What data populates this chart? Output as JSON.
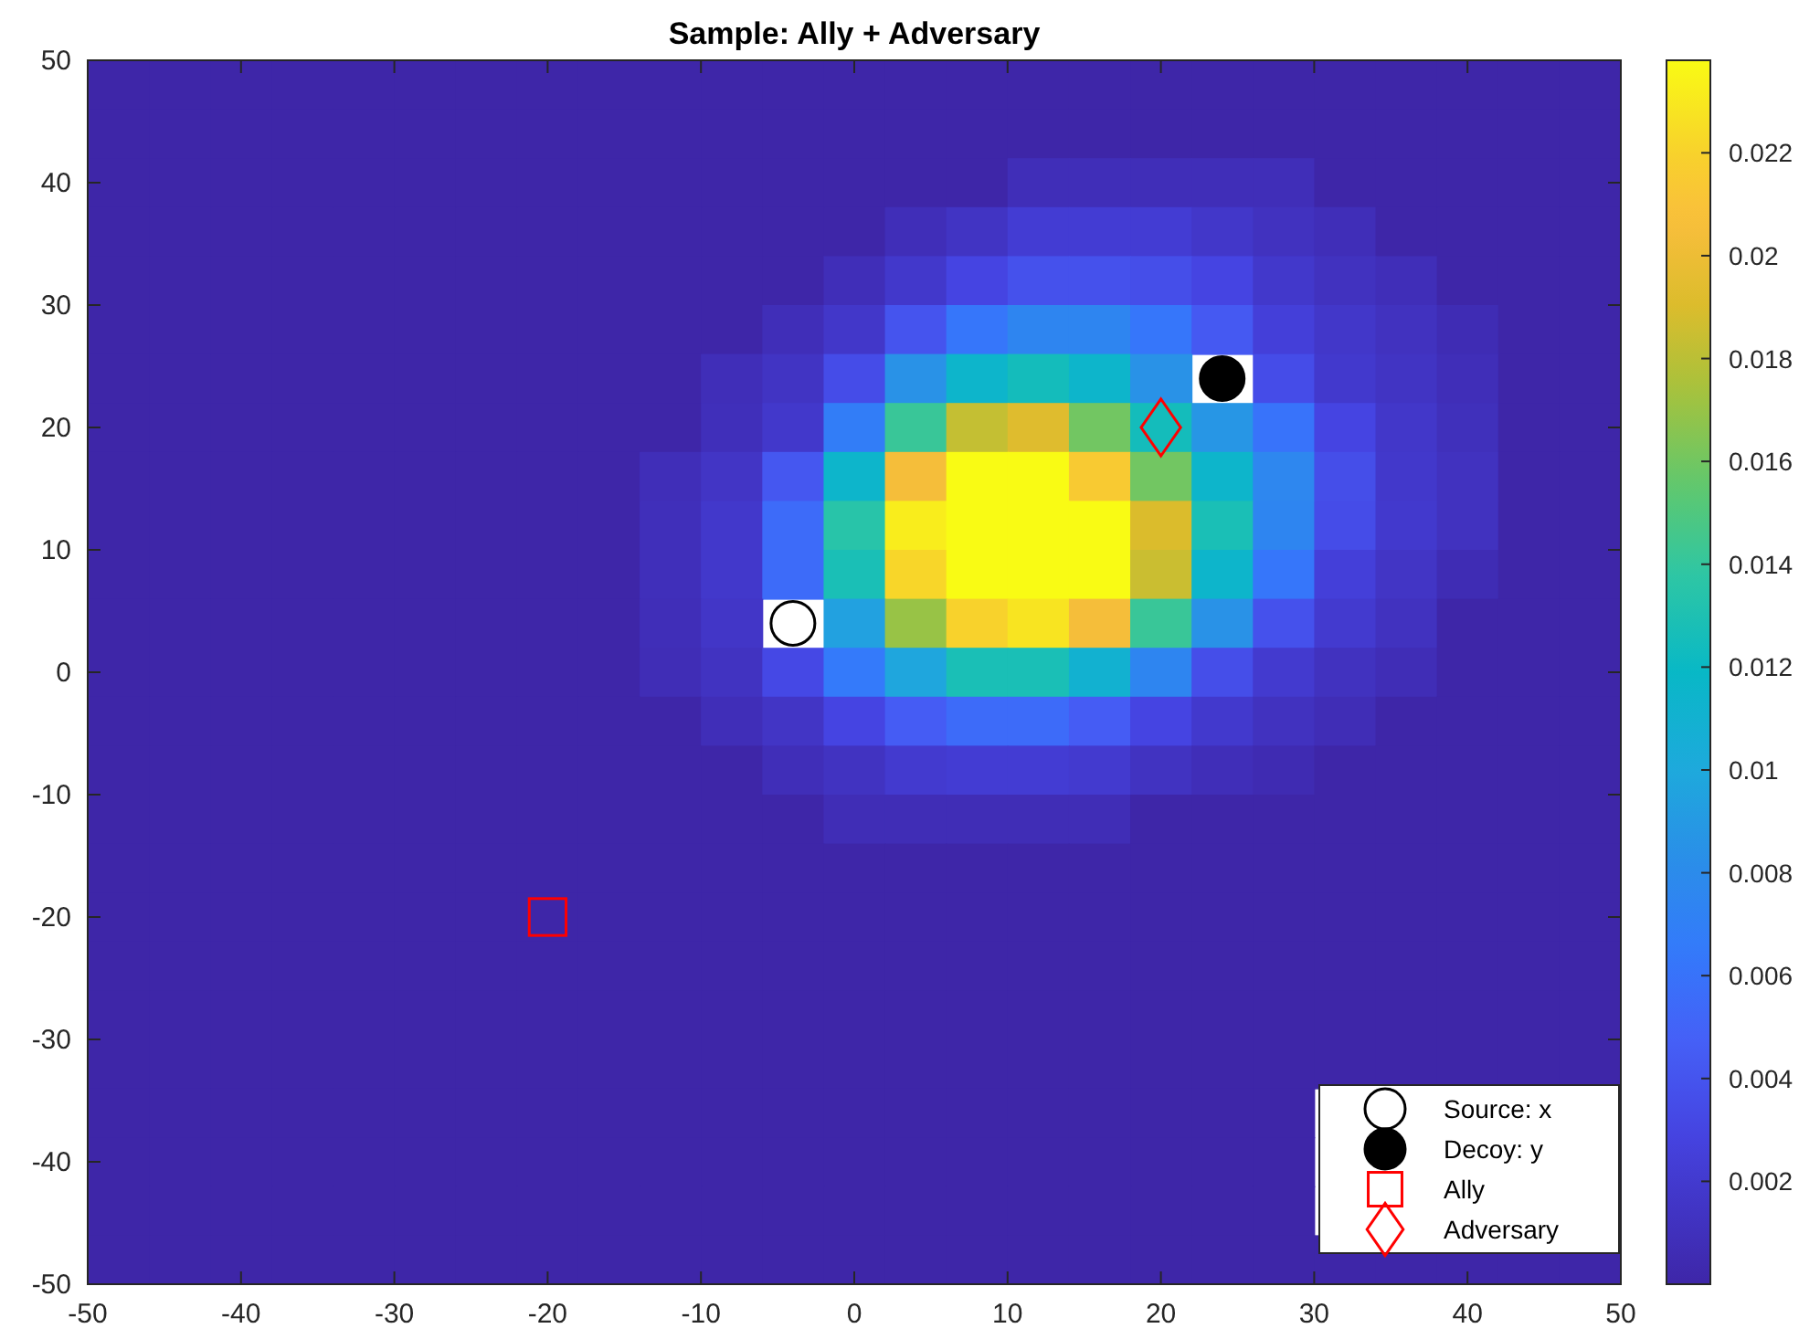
{
  "chart_data": {
    "type": "heatmap",
    "title": "Sample: Ally + Adversary",
    "xlim": [
      -50,
      50
    ],
    "ylim": [
      -50,
      50
    ],
    "xticks": [
      -50,
      -40,
      -30,
      -20,
      -10,
      0,
      10,
      20,
      30,
      40,
      50
    ],
    "yticks": [
      -50,
      -40,
      -30,
      -20,
      -10,
      0,
      10,
      20,
      30,
      40,
      50
    ],
    "clim": [
      0,
      0.0238
    ],
    "cticks": [
      0.002,
      0.004,
      0.006,
      0.008,
      0.01,
      0.012,
      0.014,
      0.016,
      0.018,
      0.02,
      0.022
    ],
    "grid": false,
    "legend": "bottom right",
    "cells": [
      [
        0,
        0,
        0,
        0,
        0,
        0,
        0,
        0,
        0,
        0,
        0,
        0,
        0,
        0,
        0,
        0,
        0,
        0,
        0,
        0,
        0,
        0,
        0,
        0,
        0
      ],
      [
        0,
        0,
        0,
        0,
        0,
        0,
        0,
        0,
        0,
        0,
        0,
        0,
        0,
        0,
        0,
        0,
        0,
        0,
        0,
        0,
        0,
        0,
        0,
        0,
        0
      ],
      [
        0,
        0,
        0,
        0,
        0,
        0,
        0,
        0,
        0,
        0,
        0,
        0,
        0,
        0,
        0,
        0.0008,
        0.0008,
        0.0008,
        0.0008,
        0.0008,
        0,
        0,
        0,
        0,
        0
      ],
      [
        0,
        0,
        0,
        0,
        0,
        0,
        0,
        0,
        0,
        0,
        0,
        0,
        0,
        0.0008,
        0.0014,
        0.0022,
        0.0022,
        0.0022,
        0.0017,
        0.0012,
        0.0008,
        0,
        0,
        0,
        0
      ],
      [
        0,
        0,
        0,
        0,
        0,
        0,
        0,
        0,
        0,
        0,
        0,
        0,
        0.0008,
        0.0018,
        0.003,
        0.0038,
        0.0038,
        0.0036,
        0.003,
        0.0018,
        0.0012,
        0.0008,
        0,
        0,
        0
      ],
      [
        0,
        0,
        0,
        0,
        0,
        0,
        0,
        0,
        0,
        0,
        0,
        0.0008,
        0.0017,
        0.004,
        0.0062,
        0.0075,
        0.0075,
        0.0062,
        0.0043,
        0.0025,
        0.0017,
        0.0012,
        0.0006,
        0,
        0
      ],
      [
        0,
        0,
        0,
        0,
        0,
        0,
        0,
        0,
        0,
        0,
        0.0008,
        0.0014,
        0.0035,
        0.0085,
        0.0115,
        0.0125,
        0.0115,
        0.0085,
        null,
        0.0035,
        0.0019,
        0.0014,
        0.0008,
        0,
        0
      ],
      [
        0,
        0,
        0,
        0,
        0,
        0,
        0,
        0,
        0,
        0,
        0.0009,
        0.0018,
        0.0068,
        0.0142,
        0.0183,
        0.0192,
        0.016,
        0.0125,
        0.0088,
        0.006,
        0.003,
        0.0017,
        0.001,
        0,
        0
      ],
      [
        0,
        0,
        0,
        0,
        0,
        0,
        0,
        0,
        0,
        0.0008,
        0.0015,
        0.0042,
        0.0115,
        0.0205,
        0.0238,
        0.0238,
        0.0215,
        0.016,
        0.0115,
        0.0076,
        0.0036,
        0.0018,
        0.0012,
        0,
        0
      ],
      [
        0,
        0,
        0,
        0,
        0,
        0,
        0,
        0,
        0,
        0.0009,
        0.0018,
        0.0055,
        0.0135,
        0.0232,
        0.0238,
        0.0238,
        0.0238,
        0.019,
        0.0128,
        0.0075,
        0.0035,
        0.0019,
        0.0012,
        0,
        0
      ],
      [
        0,
        0,
        0,
        0,
        0,
        0,
        0,
        0,
        0,
        0.0009,
        0.0018,
        0.0055,
        0.0128,
        0.0222,
        0.0238,
        0.0238,
        0.0238,
        0.0185,
        0.0115,
        0.0062,
        0.0025,
        0.0015,
        0.0006,
        0,
        0
      ],
      [
        0,
        0,
        0,
        0,
        0,
        0,
        0,
        0,
        0,
        0.0008,
        0.0016,
        null,
        0.0095,
        0.017,
        0.022,
        0.0228,
        0.0205,
        0.0142,
        0.0085,
        0.0038,
        0.002,
        0.0012,
        0,
        0,
        0
      ],
      [
        0,
        0,
        0,
        0,
        0,
        0,
        0,
        0,
        0,
        0.0007,
        0.0013,
        0.0032,
        0.0065,
        0.0098,
        0.0128,
        0.0128,
        0.011,
        0.0075,
        0.0036,
        0.002,
        0.0012,
        0.0007,
        0,
        0,
        0
      ],
      [
        0,
        0,
        0,
        0,
        0,
        0,
        0,
        0,
        0,
        0,
        0.0008,
        0.0015,
        0.003,
        0.0045,
        0.0055,
        0.0055,
        0.0045,
        0.003,
        0.0019,
        0.0012,
        0.0007,
        0,
        0,
        0,
        0
      ],
      [
        0,
        0,
        0,
        0,
        0,
        0,
        0,
        0,
        0,
        0,
        0,
        0.0008,
        0.0013,
        0.002,
        0.0022,
        0.0022,
        0.002,
        0.0013,
        0.0008,
        0.0005,
        0,
        0,
        0,
        0,
        0
      ],
      [
        0,
        0,
        0,
        0,
        0,
        0,
        0,
        0,
        0,
        0,
        0,
        0,
        0.0007,
        0.0007,
        0.0007,
        0.0007,
        0.0007,
        0,
        0,
        0,
        0,
        0,
        0,
        0,
        0
      ],
      [
        0,
        0,
        0,
        0,
        0,
        0,
        0,
        0,
        0,
        0,
        0,
        0,
        0,
        0,
        0,
        0,
        0,
        0,
        0,
        0,
        0,
        0,
        0,
        0,
        0
      ],
      [
        0,
        0,
        0,
        0,
        0,
        0,
        0,
        0,
        0,
        0,
        0,
        0,
        0,
        0,
        0,
        0,
        0,
        0,
        0,
        0,
        0,
        0,
        0,
        0,
        0
      ],
      [
        0,
        0,
        0,
        0,
        0,
        0,
        0,
        0,
        0,
        0,
        0,
        0,
        0,
        0,
        0,
        0,
        0,
        0,
        0,
        0,
        0,
        0,
        0,
        0,
        0
      ],
      [
        0,
        0,
        0,
        0,
        0,
        0,
        0,
        0,
        0,
        0,
        0,
        0,
        0,
        0,
        0,
        0,
        0,
        0,
        0,
        0,
        0,
        0,
        0,
        0,
        0
      ],
      [
        0,
        0,
        0,
        0,
        0,
        0,
        0,
        0,
        0,
        0,
        0,
        0,
        0,
        0,
        0,
        0,
        0,
        0,
        0,
        0,
        0,
        0,
        0,
        0,
        0
      ],
      [
        0,
        0,
        0,
        0,
        0,
        0,
        0,
        0,
        0,
        0,
        0,
        0,
        0,
        0,
        0,
        0,
        0,
        0,
        0,
        0,
        null,
        null,
        null,
        null,
        null
      ],
      [
        0,
        0,
        0,
        0,
        0,
        0,
        0,
        0,
        0,
        0,
        0,
        0,
        0,
        0,
        0,
        0,
        0,
        0,
        0,
        0,
        null,
        null,
        null,
        null,
        null
      ],
      [
        0,
        0,
        0,
        0,
        0,
        0,
        0,
        0,
        0,
        0,
        0,
        0,
        0,
        0,
        0,
        0,
        0,
        0,
        0,
        0,
        null,
        null,
        null,
        null,
        null
      ],
      [
        0,
        0,
        0,
        0,
        0,
        0,
        0,
        0,
        0,
        0,
        0,
        0,
        0,
        0,
        0,
        0,
        0,
        0,
        0,
        0,
        0,
        0,
        0,
        0,
        0
      ]
    ],
    "series": [
      {
        "name": "Source: x",
        "type": "scatter",
        "marker": "circle",
        "color": "#ffffff",
        "x": [
          -4
        ],
        "values": [
          4
        ]
      },
      {
        "name": "Decoy: y",
        "type": "scatter",
        "marker": "circle",
        "color": "#000000",
        "x": [
          24
        ],
        "values": [
          24
        ]
      },
      {
        "name": "Ally",
        "type": "scatter",
        "marker": "square",
        "color": "#ff0000",
        "x": [
          -20
        ],
        "values": [
          -20
        ]
      },
      {
        "name": "Adversary",
        "type": "scatter",
        "marker": "diamond",
        "color": "#ff0000",
        "x": [
          20
        ],
        "values": [
          20
        ]
      }
    ]
  }
}
